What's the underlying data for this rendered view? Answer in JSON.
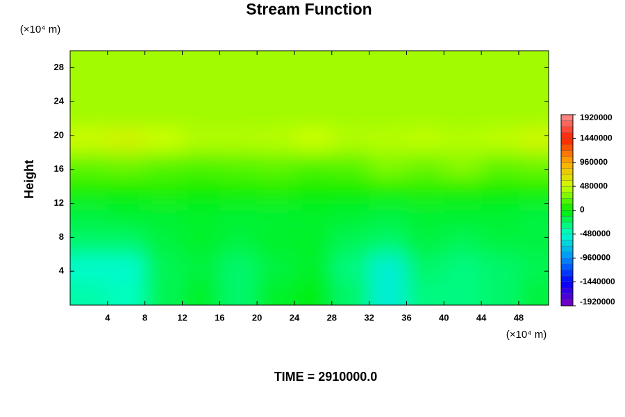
{
  "chart_data": {
    "type": "contour",
    "title": "Stream Function",
    "ylabel": "Height",
    "y_unit": "(×10⁴ m)",
    "x_unit": "(×10⁴ m)",
    "footer": "TIME = 2910000.0",
    "xlim": [
      0,
      51.2
    ],
    "ylim": [
      0,
      30
    ],
    "xticks": [
      4,
      8,
      12,
      16,
      20,
      24,
      28,
      32,
      36,
      40,
      44,
      48
    ],
    "yticks": [
      4,
      8,
      12,
      16,
      20,
      24,
      28
    ],
    "x": [
      2,
      6,
      10,
      14,
      18,
      22,
      26,
      30,
      34,
      38,
      42,
      46,
      50
    ],
    "y": [
      1.5,
      4.5,
      7.5,
      10.5,
      13.5,
      16.5,
      19.5,
      22.5,
      25.5,
      28.5
    ],
    "z": [
      [
        -400000,
        -450000,
        -200000,
        -100000,
        -250000,
        -100000,
        -50000,
        -250000,
        -550000,
        -300000,
        -300000,
        -250000,
        -150000
      ],
      [
        -500000,
        -500000,
        -200000,
        -150000,
        -250000,
        -150000,
        -100000,
        -300000,
        -550000,
        -250000,
        -300000,
        -250000,
        -200000
      ],
      [
        -250000,
        -250000,
        -150000,
        -100000,
        -150000,
        -100000,
        -100000,
        -200000,
        -250000,
        -150000,
        -200000,
        -150000,
        -150000
      ],
      [
        -150000,
        -120000,
        -120000,
        -100000,
        -120000,
        -120000,
        -100000,
        -120000,
        -150000,
        -120000,
        -120000,
        -120000,
        -150000
      ],
      [
        50000,
        40000,
        60000,
        30000,
        50000,
        60000,
        40000,
        30000,
        50000,
        60000,
        50000,
        40000,
        50000
      ],
      [
        220000,
        250000,
        200000,
        180000,
        200000,
        220000,
        180000,
        200000,
        300000,
        250000,
        320000,
        220000,
        250000
      ],
      [
        500000,
        550000,
        480000,
        420000,
        420000,
        430000,
        480000,
        420000,
        430000,
        450000,
        420000,
        450000,
        520000
      ],
      [
        380000,
        380000,
        380000,
        380000,
        380000,
        380000,
        380000,
        380000,
        380000,
        380000,
        380000,
        380000,
        380000
      ],
      [
        380000,
        380000,
        380000,
        380000,
        380000,
        380000,
        380000,
        380000,
        380000,
        380000,
        380000,
        380000,
        380000
      ],
      [
        380000,
        380000,
        380000,
        380000,
        380000,
        380000,
        380000,
        380000,
        380000,
        380000,
        380000,
        380000,
        380000
      ]
    ],
    "colorscale": [
      [
        -1920000,
        "#7f00bf"
      ],
      [
        -1440000,
        "#0000ff"
      ],
      [
        -960000,
        "#0090ff"
      ],
      [
        -480000,
        "#00ffcc"
      ],
      [
        0,
        "#00ee00"
      ],
      [
        480000,
        "#ccff00"
      ],
      [
        960000,
        "#ffaa00"
      ],
      [
        1440000,
        "#ff2000"
      ],
      [
        1920000,
        "#ff9090"
      ]
    ],
    "clim": [
      -1920000,
      1920000
    ],
    "cticks": [
      -1920000,
      -1440000,
      -960000,
      -480000,
      0,
      480000,
      960000,
      1440000,
      1920000
    ]
  }
}
